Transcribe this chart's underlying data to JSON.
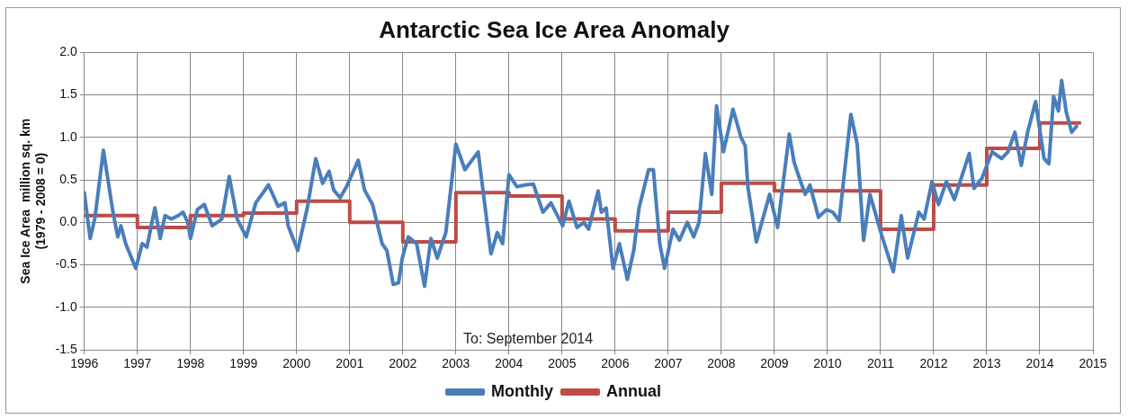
{
  "chart_data": {
    "type": "line",
    "title": "Antarctic Sea Ice Area Anomaly",
    "ylabel": "Sea Ice Area  million sq. km\n(1979 - 2008 = 0)",
    "xlim": [
      1996,
      2015
    ],
    "xticks": [
      1996,
      1997,
      1998,
      1999,
      2000,
      2001,
      2002,
      2003,
      2004,
      2005,
      2006,
      2007,
      2008,
      2009,
      2010,
      2011,
      2012,
      2013,
      2014,
      2015
    ],
    "ylim": [
      -1.5,
      2.0
    ],
    "yticks": [
      {
        "value": -1.5,
        "label": "-1.5"
      },
      {
        "value": -1.0,
        "label": "-1.0"
      },
      {
        "value": -0.5,
        "label": "-0.5"
      },
      {
        "value": 0,
        "label": "0.0"
      },
      {
        "value": 0.5,
        "label": "0.5"
      },
      {
        "value": 1.0,
        "label": "1.0"
      },
      {
        "value": 1.5,
        "label": "1.5"
      },
      {
        "value": 2.0,
        "label": "2.0"
      }
    ],
    "grid": true,
    "legend": "bottom",
    "marker": "none",
    "annotations": [
      "To: September 2014"
    ],
    "series": [
      {
        "name": "Monthly",
        "type": "line",
        "color": "#4a7ebb",
        "x": [
          1996.0,
          1996.11,
          1996.2,
          1996.36,
          1996.54,
          1996.63,
          1996.69,
          1996.78,
          1996.97,
          1997.09,
          1997.18,
          1997.33,
          1997.43,
          1997.52,
          1997.64,
          1997.77,
          1997.86,
          1997.95,
          1998.0,
          1998.13,
          1998.26,
          1998.41,
          1998.59,
          1998.73,
          1998.88,
          1999.05,
          1999.23,
          1999.47,
          1999.65,
          1999.78,
          1999.84,
          2000.02,
          2000.2,
          2000.36,
          2000.49,
          2000.61,
          2000.7,
          2000.82,
          2000.94,
          2001.16,
          2001.28,
          2001.43,
          2001.61,
          2001.7,
          2001.82,
          2001.92,
          2001.99,
          2002.1,
          2002.26,
          2002.41,
          2002.53,
          2002.65,
          2002.81,
          2003.0,
          2003.17,
          2003.42,
          2003.66,
          2003.78,
          2003.88,
          2004.0,
          2004.15,
          2004.3,
          2004.46,
          2004.64,
          2004.79,
          2005.01,
          2005.13,
          2005.28,
          2005.41,
          2005.5,
          2005.68,
          2005.74,
          2005.83,
          2005.96,
          2006.08,
          2006.23,
          2006.35,
          2006.45,
          2006.63,
          2006.72,
          2006.84,
          2006.93,
          2007.09,
          2007.21,
          2007.36,
          2007.48,
          2007.58,
          2007.7,
          2007.82,
          2007.91,
          2008.04,
          2008.22,
          2008.37,
          2008.45,
          2008.5,
          2008.66,
          2008.91,
          2009.06,
          2009.28,
          2009.37,
          2009.46,
          2009.58,
          2009.67,
          2009.83,
          2009.98,
          2010.1,
          2010.22,
          2010.44,
          2010.56,
          2010.68,
          2010.8,
          2011.02,
          2011.24,
          2011.39,
          2011.51,
          2011.72,
          2011.82,
          2011.97,
          2012.09,
          2012.24,
          2012.39,
          2012.52,
          2012.67,
          2012.76,
          2012.91,
          2013.1,
          2013.28,
          2013.4,
          2013.53,
          2013.65,
          2013.77,
          2013.92,
          2014.08,
          2014.17,
          2014.26,
          2014.35,
          2014.41,
          2014.5,
          2014.6,
          2014.69
        ],
        "values": [
          0.35,
          -0.19,
          0.05,
          0.85,
          0.12,
          -0.17,
          -0.04,
          -0.25,
          -0.54,
          -0.25,
          -0.29,
          0.17,
          -0.19,
          0.08,
          0.04,
          0.08,
          0.12,
          0.0,
          -0.19,
          0.15,
          0.21,
          -0.04,
          0.04,
          0.54,
          0.04,
          -0.17,
          0.23,
          0.44,
          0.19,
          0.23,
          -0.04,
          -0.33,
          0.17,
          0.75,
          0.46,
          0.6,
          0.38,
          0.29,
          0.42,
          0.73,
          0.38,
          0.21,
          -0.25,
          -0.33,
          -0.73,
          -0.71,
          -0.42,
          -0.17,
          -0.25,
          -0.75,
          -0.19,
          -0.42,
          -0.12,
          0.92,
          0.62,
          0.83,
          -0.37,
          -0.12,
          -0.25,
          0.56,
          0.42,
          0.44,
          0.45,
          0.12,
          0.23,
          -0.04,
          0.25,
          -0.06,
          0.0,
          -0.08,
          0.37,
          0.12,
          0.17,
          -0.54,
          -0.25,
          -0.67,
          -0.33,
          0.17,
          0.62,
          0.62,
          -0.25,
          -0.54,
          -0.08,
          -0.21,
          0.0,
          -0.17,
          0.0,
          0.81,
          0.33,
          1.37,
          0.83,
          1.33,
          1.0,
          0.9,
          0.42,
          -0.23,
          0.33,
          -0.06,
          1.04,
          0.71,
          0.54,
          0.33,
          0.44,
          0.06,
          0.15,
          0.12,
          0.02,
          1.27,
          0.92,
          -0.21,
          0.33,
          -0.15,
          -0.58,
          0.08,
          -0.42,
          0.12,
          0.04,
          0.48,
          0.21,
          0.48,
          0.27,
          0.52,
          0.81,
          0.4,
          0.52,
          0.83,
          0.75,
          0.83,
          1.06,
          0.67,
          1.06,
          1.42,
          0.75,
          0.69,
          1.48,
          1.31,
          1.67,
          1.29,
          1.06,
          1.13
        ]
      },
      {
        "name": "Annual",
        "type": "step",
        "color": "#be4b48",
        "x": [
          1996,
          1997,
          1998,
          1999,
          2000,
          2001,
          2002,
          2003,
          2004,
          2005,
          2006,
          2007,
          2008,
          2009,
          2010,
          2011,
          2012,
          2013,
          2014,
          2014.75
        ],
        "values": [
          0.08,
          -0.06,
          0.08,
          0.11,
          0.25,
          0.0,
          -0.23,
          0.35,
          0.31,
          0.04,
          -0.1,
          0.12,
          0.46,
          0.37,
          0.37,
          -0.08,
          0.44,
          0.87,
          1.17,
          1.17
        ]
      }
    ]
  }
}
